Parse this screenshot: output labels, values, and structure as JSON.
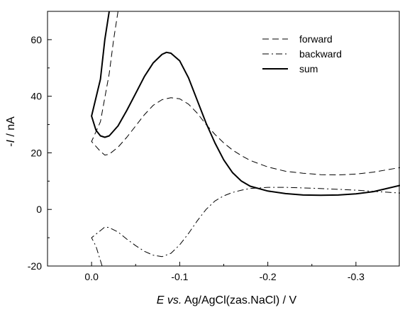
{
  "chart_data": {
    "type": "line",
    "title": "",
    "xlabel_parts": [
      {
        "text": "E",
        "italic": true
      },
      {
        "text": " vs.",
        "italic": true
      },
      {
        "text": " Ag/AgCl(zas.NaCl) / V",
        "italic": false
      }
    ],
    "ylabel_parts": [
      {
        "text": "-",
        "italic": false
      },
      {
        "text": "I",
        "italic": true
      },
      {
        "text": " / nA",
        "italic": false
      }
    ],
    "xlim": [
      0.05,
      -0.35
    ],
    "ylim": [
      -20,
      70
    ],
    "x_reversed": true,
    "x_ticks": [
      0.0,
      -0.1,
      -0.2,
      -0.3
    ],
    "x_tick_labels": [
      "0.0",
      "-0.1",
      "-0.2",
      "-0.3"
    ],
    "y_ticks": [
      -20,
      0,
      20,
      40,
      60
    ],
    "y_tick_labels": [
      "-20",
      "0",
      "20",
      "40",
      "60"
    ],
    "grid": false,
    "legend_position": "top-right",
    "series": [
      {
        "name": "forward",
        "style": "dashed",
        "color": "#000000",
        "points": [
          [
            -0.03,
            70
          ],
          [
            -0.025,
            60
          ],
          [
            -0.02,
            48
          ],
          [
            -0.01,
            31
          ],
          [
            0.0,
            24
          ],
          [
            -0.01,
            20.5
          ],
          [
            -0.015,
            19.2
          ],
          [
            -0.02,
            19.5
          ],
          [
            -0.03,
            22
          ],
          [
            -0.04,
            25.5
          ],
          [
            -0.05,
            29.5
          ],
          [
            -0.06,
            33.5
          ],
          [
            -0.07,
            36.8
          ],
          [
            -0.08,
            38.8
          ],
          [
            -0.09,
            39.5
          ],
          [
            -0.1,
            39.1
          ],
          [
            -0.11,
            37.2
          ],
          [
            -0.12,
            34
          ],
          [
            -0.13,
            30
          ],
          [
            -0.14,
            26.5
          ],
          [
            -0.15,
            23.5
          ],
          [
            -0.16,
            21
          ],
          [
            -0.17,
            19
          ],
          [
            -0.18,
            17.3
          ],
          [
            -0.2,
            15
          ],
          [
            -0.22,
            13.5
          ],
          [
            -0.24,
            12.8
          ],
          [
            -0.26,
            12.3
          ],
          [
            -0.28,
            12.2
          ],
          [
            -0.3,
            12.5
          ],
          [
            -0.32,
            13.2
          ],
          [
            -0.35,
            14.8
          ]
        ]
      },
      {
        "name": "backward",
        "style": "dash-dot",
        "color": "#000000",
        "points": [
          [
            -0.012,
            -20
          ],
          [
            -0.005,
            -13
          ],
          [
            0.0,
            -10
          ],
          [
            -0.01,
            -7.5
          ],
          [
            -0.015,
            -6.2
          ],
          [
            -0.02,
            -6.4
          ],
          [
            -0.03,
            -8
          ],
          [
            -0.04,
            -10.5
          ],
          [
            -0.05,
            -12.8
          ],
          [
            -0.06,
            -14.8
          ],
          [
            -0.07,
            -16.2
          ],
          [
            -0.08,
            -16.7
          ],
          [
            -0.09,
            -15.5
          ],
          [
            -0.1,
            -12.5
          ],
          [
            -0.11,
            -8.5
          ],
          [
            -0.12,
            -4
          ],
          [
            -0.13,
            0
          ],
          [
            -0.14,
            3
          ],
          [
            -0.15,
            4.8
          ],
          [
            -0.16,
            6
          ],
          [
            -0.17,
            6.8
          ],
          [
            -0.18,
            7.4
          ],
          [
            -0.2,
            7.8
          ],
          [
            -0.22,
            7.8
          ],
          [
            -0.25,
            7.5
          ],
          [
            -0.28,
            7.1
          ],
          [
            -0.3,
            6.8
          ],
          [
            -0.32,
            6.4
          ],
          [
            -0.35,
            5.8
          ]
        ]
      },
      {
        "name": "sum",
        "style": "solid",
        "color": "#000000",
        "points": [
          [
            -0.02,
            70
          ],
          [
            -0.015,
            60
          ],
          [
            -0.01,
            46
          ],
          [
            0.0,
            33
          ],
          [
            -0.005,
            28
          ],
          [
            -0.01,
            26
          ],
          [
            -0.015,
            25.5
          ],
          [
            -0.02,
            26
          ],
          [
            -0.03,
            29.5
          ],
          [
            -0.04,
            35
          ],
          [
            -0.05,
            41
          ],
          [
            -0.06,
            47
          ],
          [
            -0.07,
            51.8
          ],
          [
            -0.08,
            54.8
          ],
          [
            -0.085,
            55.5
          ],
          [
            -0.09,
            55.2
          ],
          [
            -0.1,
            52.5
          ],
          [
            -0.11,
            46.5
          ],
          [
            -0.12,
            38.5
          ],
          [
            -0.13,
            30.5
          ],
          [
            -0.14,
            23.5
          ],
          [
            -0.15,
            17.5
          ],
          [
            -0.16,
            13
          ],
          [
            -0.17,
            10
          ],
          [
            -0.18,
            8.2
          ],
          [
            -0.2,
            6.5
          ],
          [
            -0.22,
            5.6
          ],
          [
            -0.24,
            5.1
          ],
          [
            -0.26,
            5
          ],
          [
            -0.28,
            5.1
          ],
          [
            -0.3,
            5.5
          ],
          [
            -0.32,
            6.3
          ],
          [
            -0.35,
            8.5
          ]
        ]
      }
    ]
  }
}
